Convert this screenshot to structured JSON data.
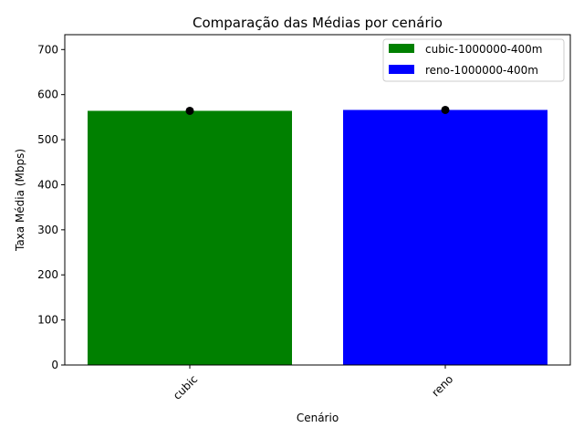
{
  "chart_data": {
    "type": "bar",
    "title": "Comparação das Médias por cenário",
    "xlabel": "Cenário",
    "ylabel": "Taxa Média (Mbps)",
    "categories": [
      "cubic",
      "reno"
    ],
    "values": [
      564,
      566
    ],
    "error_points": [
      564,
      566
    ],
    "colors": [
      "#008000",
      "#0000ff"
    ],
    "ylim": [
      0,
      733
    ],
    "yticks": [
      0,
      100,
      200,
      300,
      400,
      500,
      600,
      700
    ],
    "grid": false,
    "legend": {
      "position": "top-right",
      "entries": [
        {
          "label": "cubic-1000000-400m",
          "color": "#008000"
        },
        {
          "label": "reno-1000000-400m",
          "color": "#0000ff"
        }
      ]
    },
    "xtick_rotation_deg": 45
  }
}
